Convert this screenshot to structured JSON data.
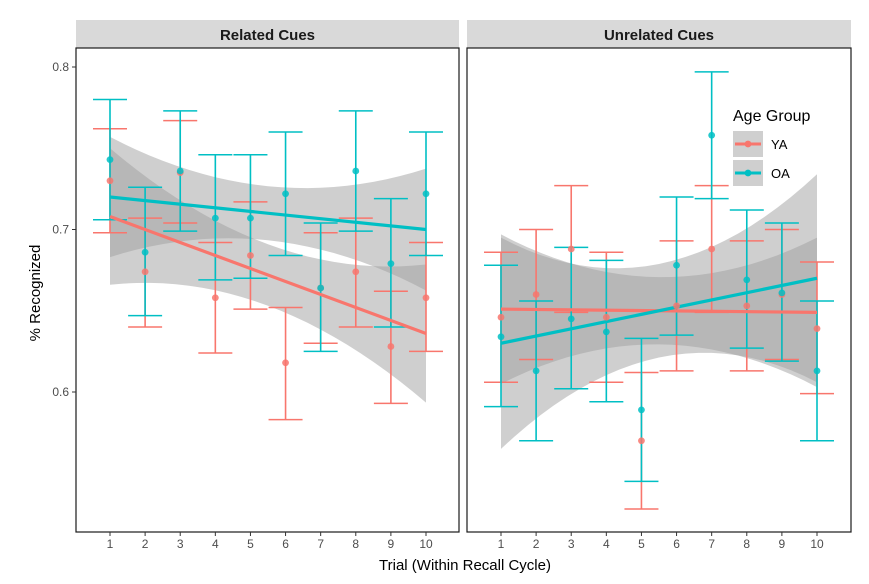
{
  "chart_data": {
    "type": "scatter",
    "xlabel": "Trial (Within Recall Cycle)",
    "ylabel": "% Recognized",
    "x_ticks": [
      "1",
      "2",
      "3",
      "4",
      "5",
      "6",
      "7",
      "8",
      "9",
      "10"
    ],
    "y_ticks": [
      "0.6",
      "0.7",
      "0.8"
    ],
    "ylim": [
      0.52,
      0.82
    ],
    "xlim": [
      0,
      11
    ],
    "grid": false,
    "legend": {
      "title": "Age Group",
      "position": "top-right inside right panel",
      "entries": [
        "YA",
        "OA"
      ]
    },
    "colors": {
      "YA": "#f8766d",
      "OA": "#00bfc4",
      "band": "#a0a0a0",
      "strip": "#d9d9d9"
    },
    "panels": [
      {
        "title": "Related Cues",
        "series": [
          {
            "name": "YA",
            "x": [
              1,
              2,
              3,
              4,
              5,
              6,
              7,
              8,
              9,
              10
            ],
            "y": [
              0.73,
              0.674,
              0.735,
              0.658,
              0.684,
              0.618,
              0.664,
              0.674,
              0.628,
              0.658
            ],
            "ymin": [
              0.698,
              0.64,
              0.704,
              0.624,
              0.651,
              0.583,
              0.63,
              0.64,
              0.593,
              0.625
            ],
            "ymax": [
              0.762,
              0.707,
              0.767,
              0.692,
              0.717,
              0.652,
              0.698,
              0.707,
              0.662,
              0.692
            ],
            "fit": {
              "y_start": 0.708,
              "y_end": 0.636,
              "ci_low_start": 0.667,
              "ci_high_start": 0.751,
              "ci_low_end": 0.594,
              "ci_high_end": 0.679
            }
          },
          {
            "name": "OA",
            "x": [
              1,
              2,
              3,
              4,
              5,
              6,
              7,
              8,
              9,
              10
            ],
            "y": [
              0.743,
              0.686,
              0.736,
              0.707,
              0.707,
              0.722,
              0.664,
              0.736,
              0.679,
              0.722
            ],
            "ymin": [
              0.706,
              0.647,
              0.699,
              0.669,
              0.67,
              0.684,
              0.625,
              0.699,
              0.64,
              0.684
            ],
            "ymax": [
              0.78,
              0.726,
              0.773,
              0.746,
              0.746,
              0.76,
              0.704,
              0.773,
              0.719,
              0.76
            ],
            "fit": {
              "y_start": 0.72,
              "y_end": 0.7,
              "ci_low_start": 0.683,
              "ci_high_start": 0.757,
              "ci_low_end": 0.663,
              "ci_high_end": 0.738
            }
          }
        ]
      },
      {
        "title": "Unrelated Cues",
        "series": [
          {
            "name": "YA",
            "x": [
              1,
              2,
              3,
              4,
              5,
              6,
              7,
              8,
              9,
              10
            ],
            "y": [
              0.646,
              0.66,
              0.688,
              0.646,
              0.57,
              0.653,
              0.688,
              0.653,
              0.66,
              0.639
            ],
            "ymin": [
              0.606,
              0.62,
              0.649,
              0.606,
              0.528,
              0.613,
              0.649,
              0.613,
              0.62,
              0.599
            ],
            "ymax": [
              0.686,
              0.7,
              0.727,
              0.686,
              0.612,
              0.693,
              0.727,
              0.693,
              0.7,
              0.68
            ],
            "fit": {
              "y_start": 0.651,
              "y_end": 0.649,
              "ci_low_start": 0.605,
              "ci_high_start": 0.697,
              "ci_low_end": 0.603,
              "ci_high_end": 0.695
            }
          },
          {
            "name": "OA",
            "x": [
              1,
              2,
              3,
              4,
              5,
              6,
              7,
              8,
              9,
              10
            ],
            "y": [
              0.634,
              0.613,
              0.645,
              0.637,
              0.589,
              0.678,
              0.758,
              0.669,
              0.661,
              0.613
            ],
            "ymin": [
              0.591,
              0.57,
              0.602,
              0.594,
              0.545,
              0.635,
              0.719,
              0.627,
              0.619,
              0.57
            ],
            "ymax": [
              0.678,
              0.656,
              0.689,
              0.681,
              0.633,
              0.72,
              0.797,
              0.712,
              0.704,
              0.656
            ],
            "fit": {
              "y_start": 0.63,
              "y_end": 0.67,
              "ci_low_start": 0.565,
              "ci_high_start": 0.695,
              "ci_low_end": 0.606,
              "ci_high_end": 0.734
            }
          }
        ]
      }
    ]
  }
}
